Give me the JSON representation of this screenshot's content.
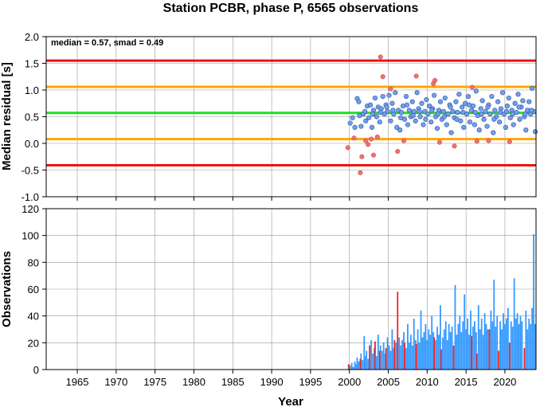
{
  "chart_data": [
    {
      "type": "scatter",
      "title": "Station PCBR, phase P, 6565 observations",
      "annotation": "median = 0.57, smad = 0.49",
      "ylabel": "Median residual [s]",
      "xlim": [
        1961,
        2024
      ],
      "ylim": [
        -1.0,
        2.0
      ],
      "y_ticks": [
        "-1.0",
        "-0.5",
        "0.0",
        "0.5",
        "1.0",
        "1.5",
        "2.0"
      ],
      "grid": true,
      "colors": {
        "inlier": "#6fa0ee",
        "outlier": "#f07070",
        "median": "#22dd22",
        "one_smad": "#ffa500",
        "two_smad": "#ee1111"
      },
      "reference_lines": [
        {
          "y": 1.55,
          "kind": "two_smad"
        },
        {
          "y": 1.06,
          "kind": "one_smad"
        },
        {
          "y": 0.57,
          "kind": "median"
        },
        {
          "y": 0.08,
          "kind": "one_smad"
        },
        {
          "y": -0.41,
          "kind": "two_smad"
        }
      ],
      "points_inlier": [
        [
          2000.1,
          0.38
        ],
        [
          2000.4,
          0.48
        ],
        [
          2000.7,
          0.3
        ],
        [
          2001.0,
          0.84
        ],
        [
          2001.2,
          0.78
        ],
        [
          2001.5,
          0.32
        ],
        [
          2001.8,
          0.55
        ],
        [
          2002.0,
          0.6
        ],
        [
          2002.3,
          0.7
        ],
        [
          2002.5,
          0.48
        ],
        [
          2002.7,
          0.72
        ],
        [
          2002.9,
          0.3
        ],
        [
          2003.1,
          0.62
        ],
        [
          2003.3,
          0.85
        ],
        [
          2003.5,
          0.5
        ],
        [
          2003.7,
          0.68
        ],
        [
          2003.9,
          0.4
        ],
        [
          2004.1,
          0.65
        ],
        [
          2004.3,
          0.88
        ],
        [
          2004.5,
          0.55
        ],
        [
          2004.7,
          0.72
        ],
        [
          2004.9,
          0.6
        ],
        [
          2005.1,
          0.9
        ],
        [
          2005.3,
          0.42
        ],
        [
          2005.5,
          0.75
        ],
        [
          2005.7,
          0.55
        ],
        [
          2005.9,
          0.95
        ],
        [
          2006.1,
          0.3
        ],
        [
          2006.3,
          0.62
        ],
        [
          2006.5,
          0.25
        ],
        [
          2006.7,
          0.58
        ],
        [
          2006.9,
          0.7
        ],
        [
          2007.1,
          0.45
        ],
        [
          2007.3,
          0.88
        ],
        [
          2007.5,
          0.35
        ],
        [
          2007.7,
          0.62
        ],
        [
          2007.9,
          0.5
        ],
        [
          2008.1,
          0.78
        ],
        [
          2008.3,
          0.6
        ],
        [
          2008.5,
          0.42
        ],
        [
          2008.7,
          0.95
        ],
        [
          2008.9,
          0.65
        ],
        [
          2009.1,
          0.5
        ],
        [
          2009.3,
          0.75
        ],
        [
          2009.5,
          0.35
        ],
        [
          2009.7,
          0.6
        ],
        [
          2009.9,
          0.82
        ],
        [
          2010.1,
          0.55
        ],
        [
          2010.3,
          0.7
        ],
        [
          2010.5,
          0.4
        ],
        [
          2010.7,
          0.65
        ],
        [
          2010.9,
          0.9
        ],
        [
          2011.1,
          0.5
        ],
        [
          2011.3,
          0.28
        ],
        [
          2011.5,
          0.62
        ],
        [
          2011.7,
          0.78
        ],
        [
          2011.9,
          0.45
        ],
        [
          2012.1,
          0.6
        ],
        [
          2012.3,
          0.85
        ],
        [
          2012.5,
          0.35
        ],
        [
          2012.7,
          0.55
        ],
        [
          2012.9,
          0.72
        ],
        [
          2013.1,
          0.2
        ],
        [
          2013.3,
          0.6
        ],
        [
          2013.5,
          0.48
        ],
        [
          2013.7,
          0.78
        ],
        [
          2013.9,
          0.58
        ],
        [
          2014.1,
          0.92
        ],
        [
          2014.3,
          0.42
        ],
        [
          2014.5,
          0.68
        ],
        [
          2014.7,
          0.3
        ],
        [
          2014.9,
          0.75
        ],
        [
          2015.1,
          0.55
        ],
        [
          2015.3,
          0.88
        ],
        [
          2015.5,
          0.4
        ],
        [
          2015.7,
          0.62
        ],
        [
          2015.9,
          0.7
        ],
        [
          2016.1,
          0.35
        ],
        [
          2016.3,
          0.98
        ],
        [
          2016.5,
          0.52
        ],
        [
          2016.7,
          0.25
        ],
        [
          2016.9,
          0.65
        ],
        [
          2017.1,
          0.8
        ],
        [
          2017.3,
          0.45
        ],
        [
          2017.5,
          0.6
        ],
        [
          2017.7,
          0.32
        ],
        [
          2017.9,
          0.72
        ],
        [
          2018.1,
          0.55
        ],
        [
          2018.3,
          0.88
        ],
        [
          2018.5,
          0.2
        ],
        [
          2018.7,
          0.62
        ],
        [
          2018.9,
          0.5
        ],
        [
          2019.1,
          0.78
        ],
        [
          2019.3,
          0.4
        ],
        [
          2019.5,
          0.65
        ],
        [
          2019.7,
          0.95
        ],
        [
          2019.9,
          0.55
        ],
        [
          2020.1,
          0.3
        ],
        [
          2020.3,
          0.7
        ],
        [
          2020.5,
          0.85
        ],
        [
          2020.7,
          0.48
        ],
        [
          2020.9,
          0.62
        ],
        [
          2021.1,
          0.35
        ],
        [
          2021.3,
          0.75
        ],
        [
          2021.5,
          0.58
        ],
        [
          2021.7,
          0.92
        ],
        [
          2021.9,
          0.45
        ],
        [
          2022.1,
          0.68
        ],
        [
          2022.3,
          0.8
        ],
        [
          2022.5,
          0.5
        ],
        [
          2022.7,
          0.25
        ],
        [
          2022.9,
          0.62
        ],
        [
          2023.1,
          0.78
        ],
        [
          2023.3,
          0.55
        ],
        [
          2023.5,
          1.03
        ],
        [
          2023.7,
          0.6
        ],
        [
          2023.9,
          0.22
        ],
        [
          2001.3,
          0.52
        ],
        [
          2002.1,
          0.42
        ],
        [
          2003.0,
          0.55
        ],
        [
          2004.0,
          0.58
        ],
        [
          2004.8,
          0.68
        ],
        [
          2005.6,
          0.62
        ],
        [
          2006.6,
          0.48
        ],
        [
          2007.4,
          0.72
        ],
        [
          2008.2,
          0.52
        ],
        [
          2009.0,
          0.6
        ],
        [
          2009.8,
          0.45
        ],
        [
          2010.6,
          0.62
        ],
        [
          2011.4,
          0.55
        ],
        [
          2012.2,
          0.5
        ],
        [
          2013.0,
          0.68
        ],
        [
          2013.8,
          0.45
        ],
        [
          2014.6,
          0.58
        ],
        [
          2015.4,
          0.72
        ],
        [
          2016.2,
          0.58
        ],
        [
          2017.0,
          0.55
        ],
        [
          2017.8,
          0.68
        ],
        [
          2018.6,
          0.45
        ],
        [
          2019.4,
          0.58
        ],
        [
          2020.2,
          0.6
        ],
        [
          2021.0,
          0.55
        ],
        [
          2021.8,
          0.68
        ],
        [
          2022.6,
          0.55
        ],
        [
          2023.4,
          0.62
        ]
      ],
      "points_outlier": [
        [
          1999.8,
          -0.08
        ],
        [
          2000.6,
          0.1
        ],
        [
          2001.4,
          -0.55
        ],
        [
          2001.6,
          -0.25
        ],
        [
          2002.1,
          0.05
        ],
        [
          2002.4,
          -0.02
        ],
        [
          2002.8,
          0.08
        ],
        [
          2003.1,
          -0.22
        ],
        [
          2003.6,
          0.12
        ],
        [
          2004.0,
          1.62
        ],
        [
          2004.3,
          1.25
        ],
        [
          2005.3,
          1.02
        ],
        [
          2006.2,
          -0.15
        ],
        [
          2007.0,
          0.05
        ],
        [
          2008.6,
          1.26
        ],
        [
          2010.8,
          1.12
        ],
        [
          2011.0,
          1.18
        ],
        [
          2013.5,
          -0.05
        ],
        [
          2015.8,
          1.05
        ],
        [
          2016.4,
          0.04
        ],
        [
          2017.9,
          0.05
        ],
        [
          2020.6,
          0.03
        ],
        [
          2011.6,
          0.02
        ]
      ]
    },
    {
      "type": "bar",
      "ylabel": "Observations",
      "xlabel": "Year",
      "xlim": [
        1961,
        2024
      ],
      "ylim": [
        0,
        120
      ],
      "x_ticks": [
        "1965",
        "1970",
        "1975",
        "1980",
        "1985",
        "1990",
        "1995",
        "2000",
        "2005",
        "2010",
        "2015",
        "2020"
      ],
      "y_ticks": [
        "0",
        "20",
        "40",
        "60",
        "80",
        "100",
        "120"
      ],
      "grid": true,
      "colors": {
        "bar": "#3399ff",
        "outlier_bar": "#ee2222"
      },
      "bars_red": [
        [
          1999.9,
          4
        ],
        [
          2001.4,
          8
        ],
        [
          2002.6,
          18
        ],
        [
          2003.3,
          21
        ],
        [
          2003.9,
          14
        ],
        [
          2004.7,
          16
        ],
        [
          2005.8,
          22
        ],
        [
          2006.2,
          58
        ],
        [
          2007.1,
          20
        ],
        [
          2008.6,
          19
        ],
        [
          2010.9,
          24
        ],
        [
          2011.8,
          15
        ],
        [
          2013.4,
          18
        ],
        [
          2015.7,
          25
        ],
        [
          2016.4,
          12
        ],
        [
          2018.0,
          30
        ],
        [
          2019.2,
          14
        ],
        [
          2020.6,
          20
        ],
        [
          2022.5,
          16
        ]
      ],
      "bars_blue": [
        [
          2000.1,
          3
        ],
        [
          2000.3,
          5
        ],
        [
          2000.5,
          2
        ],
        [
          2000.7,
          6
        ],
        [
          2000.9,
          4
        ],
        [
          2001.0,
          9
        ],
        [
          2001.2,
          6
        ],
        [
          2001.5,
          12
        ],
        [
          2001.7,
          7
        ],
        [
          2001.9,
          25
        ],
        [
          2002.0,
          10
        ],
        [
          2002.2,
          14
        ],
        [
          2002.4,
          8
        ],
        [
          2002.8,
          22
        ],
        [
          2003.0,
          12
        ],
        [
          2003.2,
          16
        ],
        [
          2003.5,
          10
        ],
        [
          2003.7,
          26
        ],
        [
          2004.0,
          18
        ],
        [
          2004.2,
          14
        ],
        [
          2004.4,
          20
        ],
        [
          2004.6,
          12
        ],
        [
          2004.9,
          24
        ],
        [
          2005.1,
          18
        ],
        [
          2005.3,
          14
        ],
        [
          2005.5,
          30
        ],
        [
          2005.7,
          16
        ],
        [
          2006.0,
          20
        ],
        [
          2006.4,
          24
        ],
        [
          2006.6,
          18
        ],
        [
          2006.8,
          22
        ],
        [
          2007.0,
          28
        ],
        [
          2007.3,
          16
        ],
        [
          2007.5,
          34
        ],
        [
          2007.7,
          20
        ],
        [
          2007.9,
          26
        ],
        [
          2008.1,
          18
        ],
        [
          2008.3,
          38
        ],
        [
          2008.5,
          22
        ],
        [
          2008.8,
          30
        ],
        [
          2009.0,
          20
        ],
        [
          2009.2,
          44
        ],
        [
          2009.4,
          24
        ],
        [
          2009.6,
          28
        ],
        [
          2009.8,
          34
        ],
        [
          2010.0,
          22
        ],
        [
          2010.2,
          30
        ],
        [
          2010.4,
          26
        ],
        [
          2010.6,
          40
        ],
        [
          2010.8,
          28
        ],
        [
          2011.1,
          22
        ],
        [
          2011.3,
          32
        ],
        [
          2011.5,
          26
        ],
        [
          2011.7,
          48
        ],
        [
          2012.0,
          24
        ],
        [
          2012.2,
          30
        ],
        [
          2012.4,
          36
        ],
        [
          2012.6,
          22
        ],
        [
          2012.8,
          34
        ],
        [
          2013.0,
          28
        ],
        [
          2013.2,
          32
        ],
        [
          2013.6,
          63
        ],
        [
          2013.8,
          26
        ],
        [
          2014.0,
          34
        ],
        [
          2014.2,
          40
        ],
        [
          2014.4,
          28
        ],
        [
          2014.6,
          36
        ],
        [
          2014.8,
          56
        ],
        [
          2015.0,
          30
        ],
        [
          2015.2,
          38
        ],
        [
          2015.4,
          26
        ],
        [
          2015.6,
          44
        ],
        [
          2015.9,
          32
        ],
        [
          2016.1,
          36
        ],
        [
          2016.3,
          28
        ],
        [
          2016.6,
          48
        ],
        [
          2016.8,
          30
        ],
        [
          2017.0,
          38
        ],
        [
          2017.2,
          26
        ],
        [
          2017.4,
          42
        ],
        [
          2017.6,
          34
        ],
        [
          2017.8,
          30
        ],
        [
          2018.2,
          44
        ],
        [
          2018.4,
          36
        ],
        [
          2018.6,
          67
        ],
        [
          2018.8,
          32
        ],
        [
          2019.0,
          40
        ],
        [
          2019.4,
          36
        ],
        [
          2019.6,
          30
        ],
        [
          2019.8,
          42
        ],
        [
          2020.0,
          34
        ],
        [
          2020.2,
          38
        ],
        [
          2020.4,
          46
        ],
        [
          2020.8,
          36
        ],
        [
          2021.0,
          32
        ],
        [
          2021.2,
          68
        ],
        [
          2021.4,
          38
        ],
        [
          2021.6,
          42
        ],
        [
          2021.8,
          34
        ],
        [
          2022.0,
          40
        ],
        [
          2022.2,
          36
        ],
        [
          2022.7,
          44
        ],
        [
          2022.9,
          30
        ],
        [
          2023.1,
          38
        ],
        [
          2023.3,
          34
        ],
        [
          2023.5,
          46
        ],
        [
          2023.7,
          101
        ],
        [
          2023.9,
          34
        ]
      ]
    }
  ]
}
